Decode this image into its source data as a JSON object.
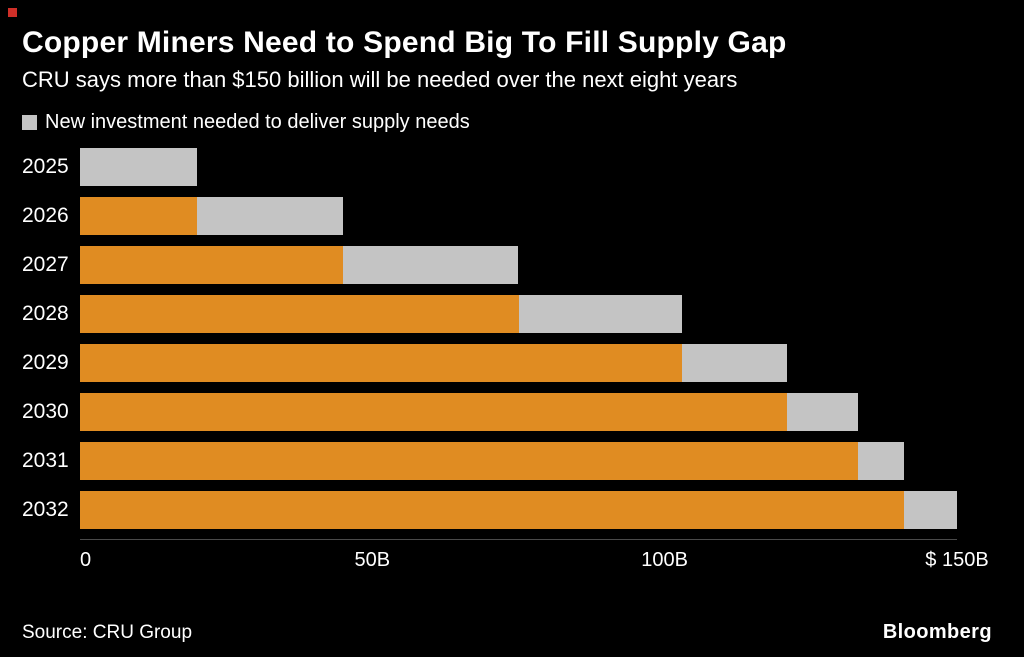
{
  "header": {
    "title": "Copper Miners Need to Spend Big To Fill Supply Gap",
    "subtitle": "CRU says more than $150 billion will be needed over the next eight years"
  },
  "legend": {
    "label": "New investment needed to deliver supply needs",
    "swatch_color": "#c4c4c4"
  },
  "chart_data": {
    "type": "bar",
    "orientation": "horizontal",
    "stacked": true,
    "title": "Copper Miners Need to Spend Big To Fill Supply Gap",
    "subtitle": "CRU says more than $150 billion will be needed over the next eight years",
    "categories": [
      "2025",
      "2026",
      "2027",
      "2028",
      "2029",
      "2030",
      "2031",
      "2032"
    ],
    "series": [
      {
        "name": "",
        "color": "#e08c22",
        "values": [
          0,
          20,
          45,
          75,
          103,
          121,
          133,
          141
        ]
      },
      {
        "name": "New investment needed to deliver supply needs",
        "color": "#c4c4c4",
        "values": [
          20,
          25,
          30,
          28,
          18,
          12,
          8,
          9
        ]
      }
    ],
    "totals": [
      20,
      45,
      75,
      103,
      121,
      133,
      141,
      150
    ],
    "xlabel": "",
    "ylabel": "",
    "xlim": [
      0,
      150
    ],
    "x_ticks": [
      {
        "value": 0,
        "label": "0"
      },
      {
        "value": 50,
        "label": "50B"
      },
      {
        "value": 100,
        "label": "100B"
      },
      {
        "value": 150,
        "label": "$ 150B"
      }
    ],
    "grid": false,
    "legend_position": "top-left",
    "background": "#000000",
    "text_color": "#ffffff"
  },
  "footer": {
    "source": "Source: CRU Group",
    "brand": "Bloomberg"
  }
}
